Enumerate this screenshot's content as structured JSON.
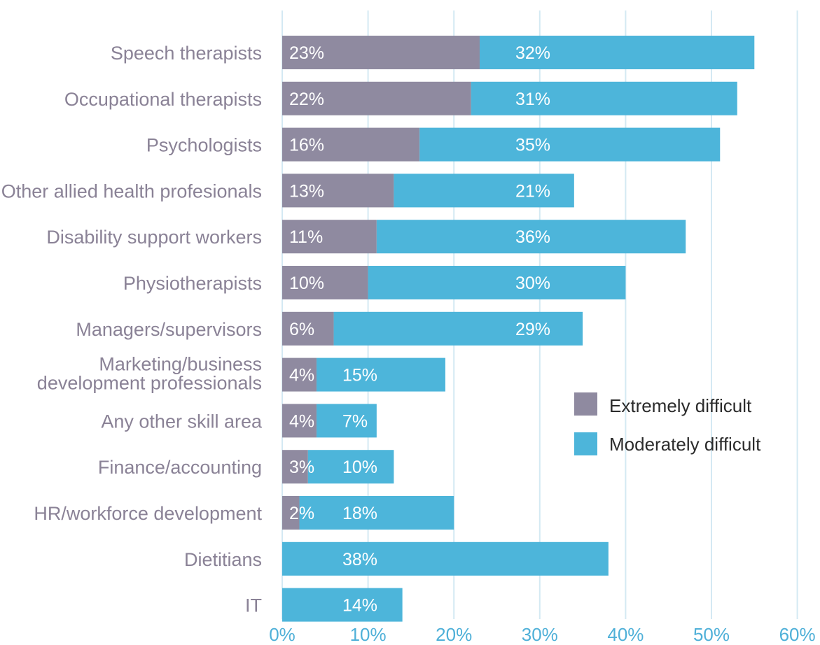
{
  "chart_data": {
    "type": "bar",
    "orientation": "horizontal",
    "stacked": true,
    "categories": [
      [
        "Speech therapists"
      ],
      [
        "Occupational therapists"
      ],
      [
        "Psychologists"
      ],
      [
        "Other allied health profesionals"
      ],
      [
        "Disability support workers"
      ],
      [
        "Physiotherapists"
      ],
      [
        "Managers/supervisors"
      ],
      [
        "Marketing/business",
        "development professionals"
      ],
      [
        "Any other skill area"
      ],
      [
        "Finance/accounting"
      ],
      [
        "HR/workforce development"
      ],
      [
        "Dietitians"
      ],
      [
        "IT"
      ]
    ],
    "series": [
      {
        "name": "Extremely difficult",
        "color": "#8f8aa0",
        "values": [
          23,
          22,
          16,
          13,
          11,
          10,
          6,
          4,
          4,
          3,
          2,
          0,
          0
        ],
        "labels": [
          "23%",
          "22%",
          "16%",
          "13%",
          "11%",
          "10%",
          "6%",
          "4%",
          "4%",
          "3%",
          "2%",
          "",
          ""
        ]
      },
      {
        "name": "Moderately difficult",
        "color": "#4db5da",
        "values": [
          32,
          31,
          35,
          21,
          36,
          30,
          29,
          15,
          7,
          10,
          18,
          38,
          14
        ],
        "labels": [
          "32%",
          "31%",
          "35%",
          "21%",
          "36%",
          "30%",
          "29%",
          "15%",
          "7%",
          "10%",
          "18%",
          "38%",
          "14%"
        ]
      }
    ],
    "xlim": [
      0,
      60
    ],
    "x_ticks": [
      0,
      10,
      20,
      30,
      40,
      50,
      60
    ],
    "x_tick_labels": [
      "0%",
      "10%",
      "20%",
      "30%",
      "40%",
      "50%",
      "60%"
    ],
    "grid": "vertical",
    "grid_color": "#d4e9f3",
    "legend_position": "center-right",
    "title": "",
    "xlabel": "",
    "ylabel": ""
  }
}
